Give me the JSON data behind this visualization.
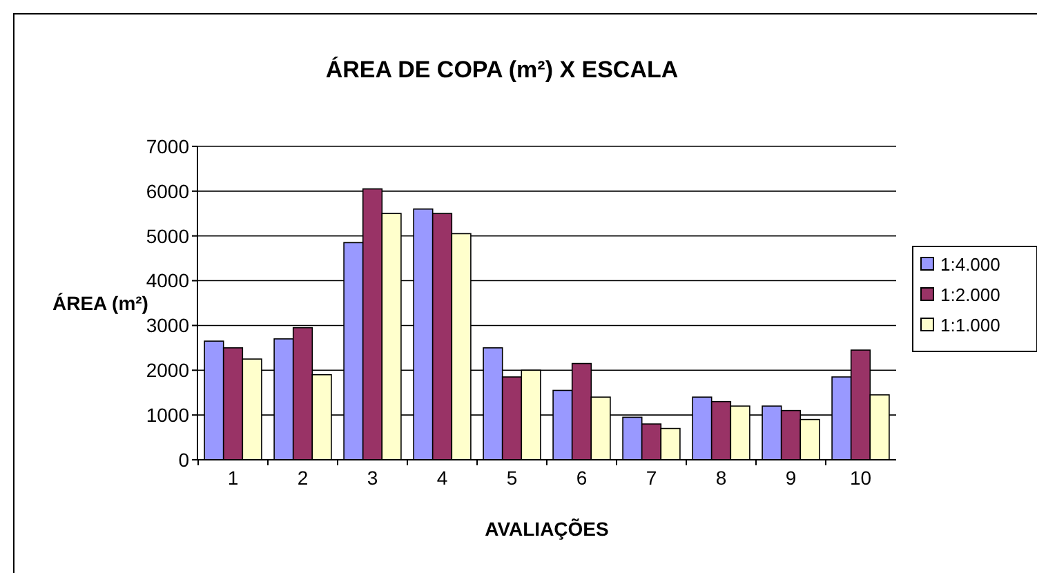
{
  "chart_data": {
    "type": "bar",
    "title": "ÁREA DE COPA (m²) X ESCALA",
    "xlabel": "AVALIAÇÕES",
    "ylabel": "ÁREA (m²)",
    "categories": [
      "1",
      "2",
      "3",
      "4",
      "5",
      "6",
      "7",
      "8",
      "9",
      "10"
    ],
    "series": [
      {
        "name": "1:4.000",
        "color": "#9999ff",
        "values": [
          2650,
          2700,
          4850,
          5600,
          2500,
          1550,
          950,
          1400,
          1200,
          1850
        ]
      },
      {
        "name": "1:2.000",
        "color": "#993366",
        "values": [
          2500,
          2950,
          6050,
          5500,
          1850,
          2150,
          800,
          1300,
          1100,
          2450
        ]
      },
      {
        "name": "1:1.000",
        "color": "#ffffcc",
        "values": [
          2250,
          1900,
          5500,
          5050,
          2000,
          1400,
          700,
          1200,
          900,
          1450
        ]
      }
    ],
    "ylim": [
      0,
      7000
    ],
    "yticks": [
      0,
      1000,
      2000,
      3000,
      4000,
      5000,
      6000,
      7000
    ],
    "grid": "y",
    "legend": "right"
  }
}
